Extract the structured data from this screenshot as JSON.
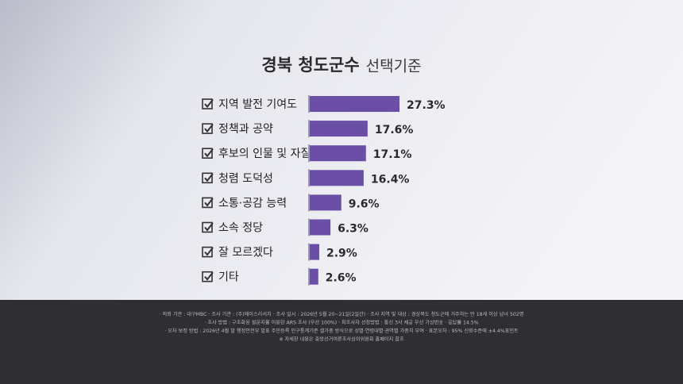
{
  "chart_data": {
    "type": "bar",
    "orientation": "horizontal",
    "title": "경북 청도군수",
    "subtitle": "선택기준",
    "categories": [
      "지역 발전 기여도",
      "정책과 공약",
      "후보의 인물 및 자질",
      "청렴 도덕성",
      "소통·공감 능력",
      "소속 정당",
      "잘 모르겠다",
      "기타"
    ],
    "values": [
      27.3,
      17.6,
      17.1,
      16.4,
      9.6,
      6.3,
      2.9,
      2.6
    ],
    "value_labels": [
      "27.3%",
      "17.6%",
      "17.1%",
      "16.4%",
      "9.6%",
      "6.3%",
      "2.9%",
      "2.6%"
    ],
    "color": "#6b4fa6"
  },
  "footer": {
    "lines": [
      "· 의뢰 기관 : 대구MBC  · 조사 기관 : (주)에이스리서치  · 조사 일시 : 2026년 5월 20~21일(2일간)  · 조사 지역 및 대상 : 경상북도 청도군에 거주하는 만 18세 이상 남녀 502명",
      "· 조사 방법 : 구조화된 설문지를 이용한 ARS 조사 (무선 100%)  · 피조사자 선정방법 : 통신 3사 제공 무선 가상번호  · 응답률 14.5%",
      "· 오차 보정 방법 : 2026년 4월 말 행정안전부 발표 주민등록 인구통계기준 셀가중 방식으로 성별·연령대별·권역별 가중치 부여  · 표본오차 : 95% 신뢰수준에 ±4.4%포인트",
      "※ 자세한 내용은 중앙선거여론조사심의위원회 홈페이지 참조"
    ]
  }
}
